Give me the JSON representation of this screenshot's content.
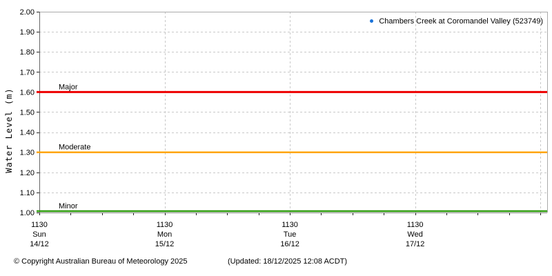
{
  "chart_data": {
    "type": "line",
    "title": "",
    "ylabel": "Water Level (m)",
    "ylim": [
      1.0,
      2.0
    ],
    "ytick_step": 0.1,
    "y_tick_format_decimals": 2,
    "grid": true,
    "legend_position": "top-right",
    "x_axis": {
      "span_hours": 97.3,
      "major_every_h": 24,
      "minor_every_h": 6,
      "day_ticks": [
        {
          "time": "1130",
          "day": "Sun",
          "date": "14/12"
        },
        {
          "time": "1130",
          "day": "Mon",
          "date": "15/12"
        },
        {
          "time": "1130",
          "day": "Tue",
          "date": "16/12"
        },
        {
          "time": "1130",
          "day": "Wed",
          "date": "17/12"
        }
      ]
    },
    "series": [
      {
        "name": "Chambers Creek at Coromandel Valley (523749)",
        "color": "#1a73d9",
        "marker": "dot",
        "values": []
      }
    ],
    "thresholds": [
      {
        "label": "Major",
        "value": 1.6,
        "color": "#ee0000"
      },
      {
        "label": "Moderate",
        "value": 1.3,
        "color": "#ffa500"
      },
      {
        "label": "Minor",
        "value": 1.0,
        "color": "#2d9a0d"
      }
    ],
    "colors": {
      "grid": "#c8c8c8",
      "axis_left": "#666666",
      "axis_bottom": "#888888",
      "border_top_right": "#aaaaaa",
      "tick": "#222222",
      "text": "#000000"
    }
  },
  "footer": {
    "copyright": "© Copyright Australian Bureau of Meteorology 2025",
    "updated": "(Updated: 18/12/2025 12:08 ACDT)"
  }
}
